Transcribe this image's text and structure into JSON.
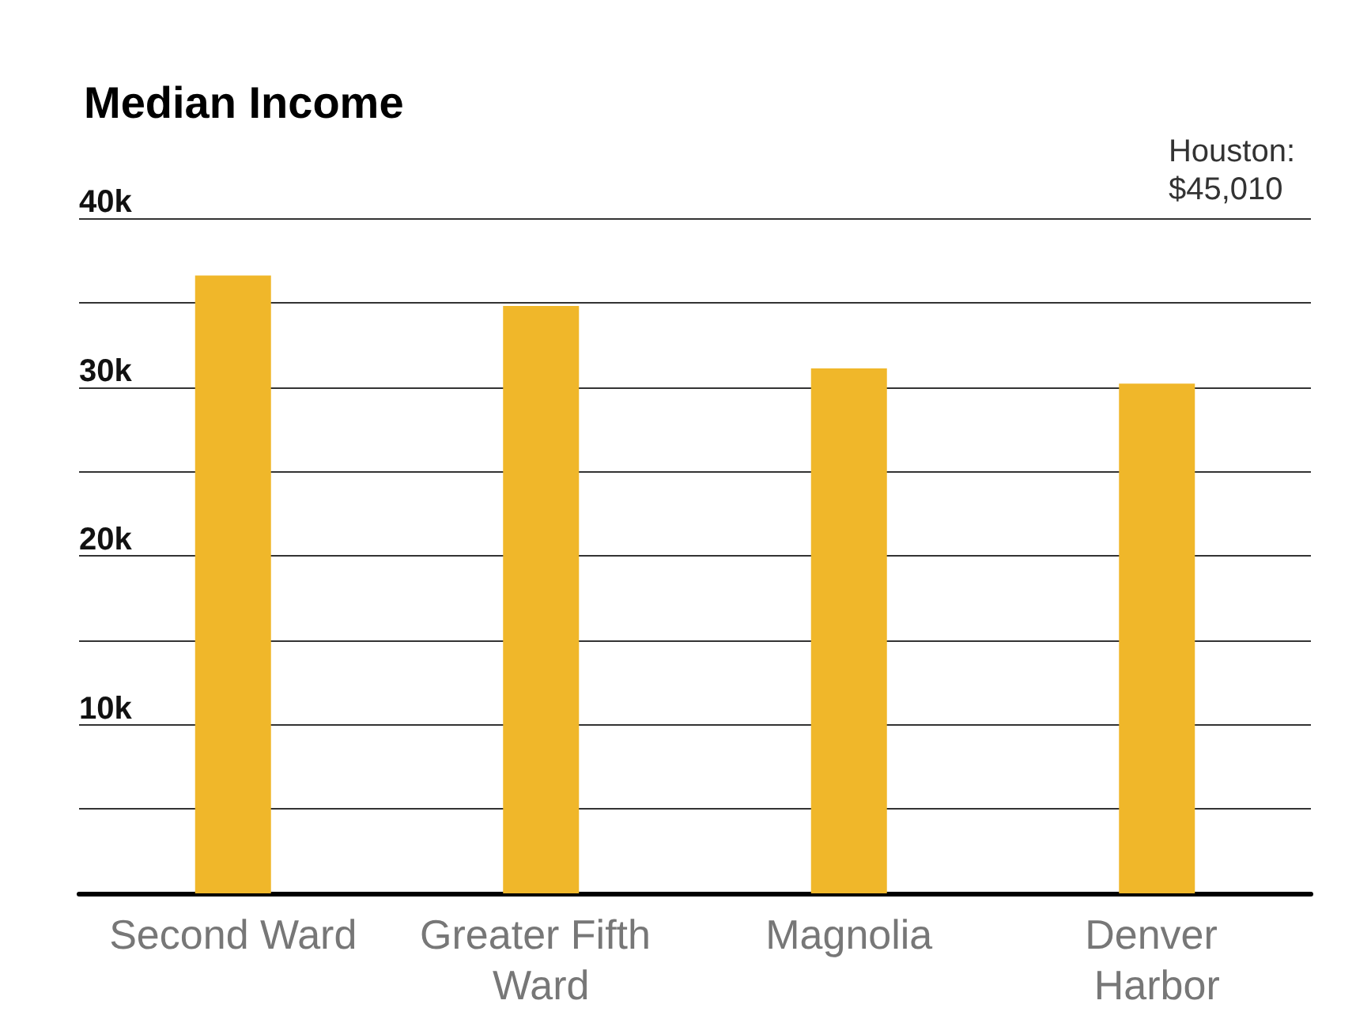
{
  "chart_data": {
    "type": "bar",
    "title": "Median Income",
    "annotations": [
      "Houston:\n$45,010"
    ],
    "categories": [
      "Second Ward",
      "Greater Fifth Ward",
      "Magnolia",
      "Denver Harbor"
    ],
    "values": [
      36600,
      34800,
      31100,
      30200
    ],
    "color": "#f0b72a",
    "ylim": [
      0,
      40000
    ],
    "yticks": [
      {
        "value": 0,
        "label": null
      },
      {
        "value": 5000,
        "label": null
      },
      {
        "value": 10000,
        "label": "10k"
      },
      {
        "value": 15000,
        "label": null
      },
      {
        "value": 20000,
        "label": "20k"
      },
      {
        "value": 25000,
        "label": null
      },
      {
        "value": 30000,
        "label": "30k"
      },
      {
        "value": 35000,
        "label": null
      },
      {
        "value": 40000,
        "label": "40k"
      }
    ],
    "grid": "y"
  }
}
